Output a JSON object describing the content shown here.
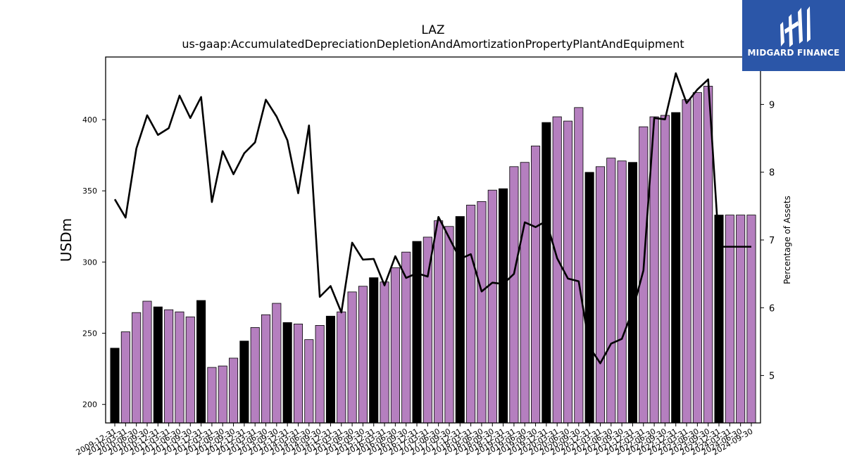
{
  "brand": {
    "name": "MIDGARD FINANCE",
    "bg_color": "#2b56a8",
    "icon": "midgard-logo-icon"
  },
  "colors": {
    "annual_bar": "#000000",
    "quarter_bar": "#b57fbf",
    "line": "#000000"
  },
  "chart_data": {
    "type": "bar",
    "title": "LAZ",
    "subtitle": "us-gaap:AccumulatedDepreciationDepletionAndAmortizationPropertyPlantAndEquipment",
    "ylabel": "USDm",
    "y2label": "Percentage of Assets",
    "ylim": [
      187,
      444
    ],
    "y2lim": [
      4.3,
      9.7
    ],
    "yticks": [
      200,
      250,
      300,
      350,
      400
    ],
    "y2ticks": [
      5,
      6,
      7,
      8,
      9
    ],
    "grid": false,
    "categories": [
      "2009-12-31",
      "2010-03-31",
      "2010-06-30",
      "2010-09-30",
      "2010-12-31",
      "2011-03-31",
      "2011-06-30",
      "2011-09-30",
      "2011-12-31",
      "2012-03-31",
      "2012-06-30",
      "2012-09-30",
      "2012-12-31",
      "2013-03-31",
      "2013-06-30",
      "2013-09-30",
      "2013-12-31",
      "2014-03-31",
      "2014-06-30",
      "2014-09-30",
      "2014-12-31",
      "2015-03-31",
      "2015-06-30",
      "2015-09-30",
      "2015-12-31",
      "2016-03-31",
      "2016-06-30",
      "2016-09-30",
      "2016-12-31",
      "2017-03-31",
      "2017-06-30",
      "2017-09-30",
      "2017-12-31",
      "2018-03-31",
      "2018-06-30",
      "2018-09-30",
      "2018-12-31",
      "2019-03-31",
      "2019-06-30",
      "2019-09-30",
      "2019-12-31",
      "2020-03-31",
      "2020-06-30",
      "2020-09-30",
      "2020-12-31",
      "2021-03-31",
      "2021-06-30",
      "2021-09-30",
      "2021-12-31",
      "2022-03-31",
      "2022-06-30",
      "2022-09-30",
      "2022-12-31",
      "2023-03-31",
      "2023-06-30",
      "2023-09-30",
      "2023-12-31",
      "2024-03-31",
      "2024-06-30",
      "2024-09-30"
    ],
    "tick_labels": [
      "2009-12-31",
      "2010-03-31",
      "2010-06-30",
      "2010-09-30",
      "2010-12-31",
      "2011-03-31",
      "2011-06-30",
      "2011-09-30",
      "2011-12-31",
      "2012-03-31",
      "2012-06-30",
      "2012-09-30",
      "2012-12-31",
      "2013-03-31",
      "2013-06-30",
      "2013-09-30",
      "2013-12-31",
      "2014-03-31",
      "2014-06-30",
      "2014-09-30",
      "2014-12-31",
      "2015-03-31",
      "2015-06-30",
      "2015-09-30",
      "2015-12-31",
      "2016-03-31",
      "2016-06-30",
      "2016-09-30",
      "2016-12-31",
      "2017-03-31",
      "2017-06-30",
      "2017-09-30",
      "2017-12-31",
      "2018-03-31",
      "2018-06-30",
      "2018-09-30",
      "2018-12-31",
      "2019-03-31",
      "2019-06-30",
      "2019-09-30",
      "2019-12-31",
      "2020-03-31",
      "2020-06-30",
      "2020-09-30",
      "2020-12-31",
      "2021-03-31",
      "2021-06-30",
      "2021-09-30",
      "2021-12-31",
      "2022-03-31",
      "2022-06-30",
      "2022-09-30",
      "2022-12-31",
      "2023-03-31",
      "2023-06-30",
      "2023-09-30",
      "2023-12-31",
      "2024-03-31",
      "2024-06-30",
      "2024-09-30"
    ],
    "annual": [
      true,
      false,
      false,
      false,
      true,
      false,
      false,
      false,
      true,
      false,
      false,
      false,
      true,
      false,
      false,
      false,
      true,
      false,
      false,
      false,
      true,
      false,
      false,
      false,
      true,
      false,
      false,
      false,
      true,
      false,
      false,
      false,
      true,
      false,
      false,
      false,
      true,
      false,
      false,
      false,
      true,
      false,
      false,
      false,
      true,
      false,
      false,
      false,
      true,
      false,
      false,
      false,
      true,
      false,
      false,
      false,
      true,
      false,
      false,
      false
    ],
    "series": [
      {
        "values": [
          239.5,
          251,
          264.5,
          272.5,
          268.5,
          266.5,
          265,
          261.5,
          273,
          226,
          227,
          232.5,
          244.5,
          254,
          263,
          271,
          257.5,
          256.5,
          245.5,
          255.5,
          262,
          265,
          279,
          283,
          289,
          286,
          296,
          307,
          314.5,
          317.5,
          329,
          325,
          332,
          340,
          342.5,
          350.5,
          351.5,
          367,
          370,
          381.5,
          398,
          402,
          399,
          408.5,
          363,
          367,
          373,
          371,
          370,
          395,
          402,
          403,
          405,
          414,
          419,
          423.5,
          333,
          333,
          333,
          333
        ]
      },
      {
        "axis": "right",
        "values": [
          7.6,
          7.33,
          8.35,
          8.84,
          8.55,
          8.65,
          9.13,
          8.8,
          9.11,
          7.56,
          8.31,
          7.97,
          8.28,
          8.44,
          9.07,
          8.82,
          8.47,
          7.69,
          8.69,
          6.16,
          6.32,
          5.93,
          6.96,
          6.71,
          6.72,
          6.33,
          6.76,
          6.44,
          6.51,
          6.46,
          7.34,
          7.03,
          6.72,
          6.79,
          6.24,
          6.37,
          6.35,
          6.5,
          7.26,
          7.19,
          7.28,
          6.73,
          6.43,
          6.39,
          5.42,
          5.18,
          5.47,
          5.54,
          5.96,
          6.55,
          8.8,
          8.78,
          9.46,
          9.02,
          9.22,
          9.37,
          6.9,
          6.9,
          6.9,
          6.9
        ]
      }
    ]
  }
}
